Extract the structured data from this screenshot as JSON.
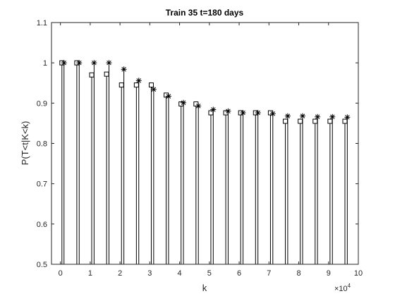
{
  "chart_data": {
    "type": "stem",
    "title": "Train 35  t=180 days",
    "xlabel": "k",
    "ylabel": "P(T<t|K<k)",
    "xlim": [
      -0.3,
      10
    ],
    "ylim": [
      0.5,
      1.1
    ],
    "x_scale_multiplier": "×10",
    "x_scale_exponent": "4",
    "x_ticks": [
      0,
      1,
      2,
      3,
      4,
      5,
      6,
      7,
      8,
      9,
      10
    ],
    "x_tick_labels": [
      "0",
      "1",
      "2",
      "3",
      "4",
      "5",
      "6",
      "7",
      "8",
      "9",
      "10"
    ],
    "y_ticks": [
      0.5,
      0.6,
      0.7,
      0.8,
      0.9,
      1.0,
      1.1
    ],
    "y_tick_labels": [
      "0.5",
      "0.6",
      "0.7",
      "0.8",
      "0.9",
      "1",
      "1.1"
    ],
    "grid": false,
    "colors": {
      "marks": "#000000",
      "axes": "#262626",
      "background": "#ffffff"
    },
    "series": [
      {
        "marker": "square",
        "x": [
          0.05,
          0.55,
          1.05,
          1.55,
          2.05,
          2.55,
          3.05,
          3.55,
          4.05,
          4.55,
          5.05,
          5.55,
          6.05,
          6.55,
          7.05,
          7.55,
          8.05,
          8.55,
          9.05,
          9.55
        ],
        "values": [
          1.0,
          1.0,
          0.97,
          0.972,
          0.945,
          0.945,
          0.945,
          0.92,
          0.898,
          0.898,
          0.876,
          0.876,
          0.876,
          0.876,
          0.876,
          0.855,
          0.855,
          0.855,
          0.855,
          0.855
        ]
      },
      {
        "marker": "asterisk",
        "x": [
          0.12,
          0.63,
          1.13,
          1.63,
          2.13,
          2.63,
          3.13,
          3.63,
          4.13,
          4.63,
          5.13,
          5.63,
          6.13,
          6.63,
          7.13,
          7.63,
          8.13,
          8.63,
          9.13,
          9.63
        ],
        "values": [
          1.0,
          1.0,
          1.0,
          1.0,
          0.984,
          0.956,
          0.934,
          0.917,
          0.901,
          0.893,
          0.884,
          0.88,
          0.876,
          0.876,
          0.874,
          0.868,
          0.868,
          0.866,
          0.866,
          0.865
        ]
      }
    ]
  }
}
